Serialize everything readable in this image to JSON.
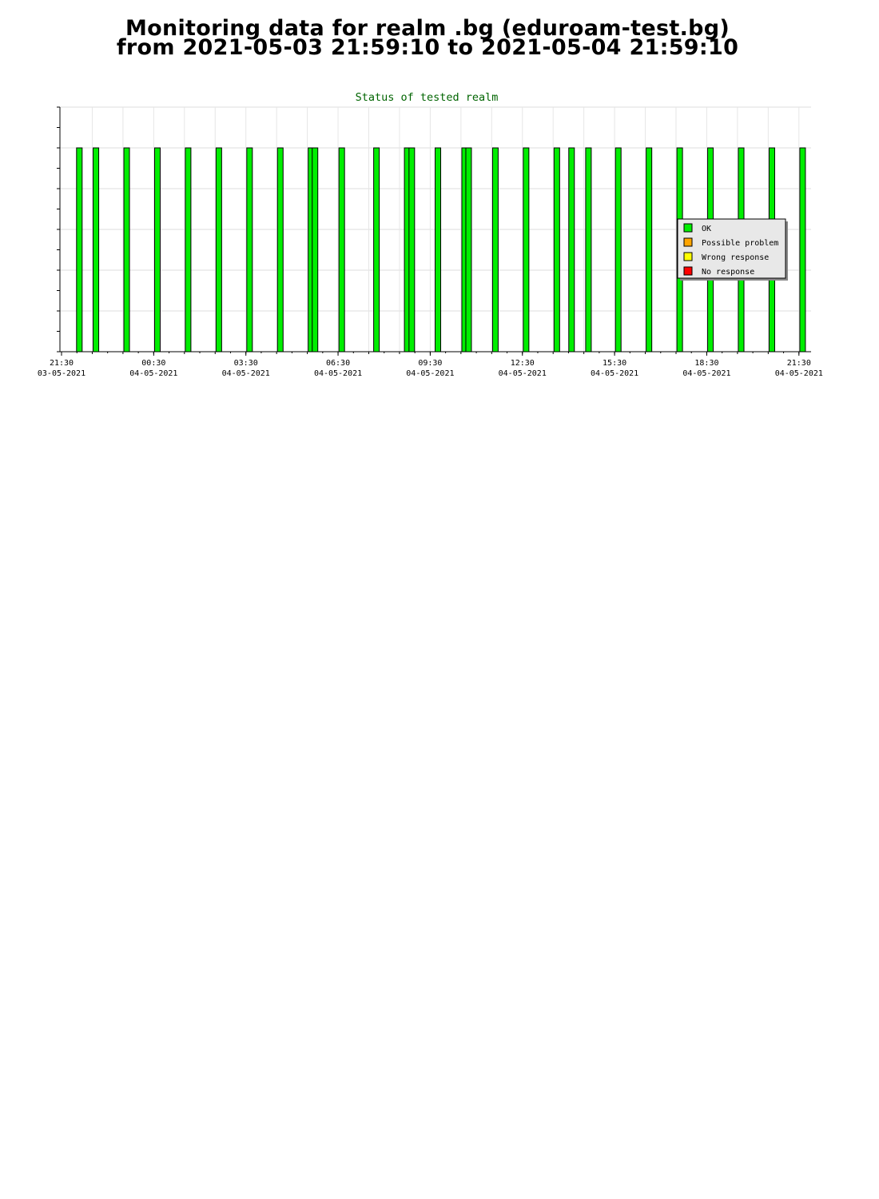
{
  "page": {
    "title_line1": "Monitoring data for realm .bg  (eduroam-test.bg)",
    "title_line2": "from 2021-05-03 21:59:10 to 2021-05-04 21:59:10"
  },
  "chart_data": {
    "type": "bar",
    "title": "Status of tested realm",
    "title_color": "#006400",
    "x_axis": {
      "unit": "hours since 21:30 03-05-2021",
      "range_hours": [
        0,
        24.5
      ],
      "ticks": [
        {
          "hours": 0,
          "time": "21:30",
          "date": "03-05-2021"
        },
        {
          "hours": 3,
          "time": "00:30",
          "date": "04-05-2021"
        },
        {
          "hours": 6,
          "time": "03:30",
          "date": "04-05-2021"
        },
        {
          "hours": 9,
          "time": "06:30",
          "date": "04-05-2021"
        },
        {
          "hours": 12,
          "time": "09:30",
          "date": "04-05-2021"
        },
        {
          "hours": 15,
          "time": "12:30",
          "date": "04-05-2021"
        },
        {
          "hours": 18,
          "time": "15:30",
          "date": "04-05-2021"
        },
        {
          "hours": 21,
          "time": "18:30",
          "date": "04-05-2021"
        },
        {
          "hours": 24,
          "time": "21:30",
          "date": "04-05-2021"
        }
      ]
    },
    "y_axis": {
      "range": [
        0,
        6
      ],
      "tick_labels_shown": false
    },
    "grid": true,
    "series": [
      {
        "name": "OK",
        "color": "#00ee00",
        "value": 5,
        "times_hours": [
          0.58,
          1.12,
          2.12,
          3.12,
          4.12,
          5.12,
          6.12,
          7.12,
          8.12,
          8.25,
          9.12,
          10.25,
          11.25,
          11.4,
          12.25,
          13.12,
          13.25,
          14.12,
          15.12,
          16.12,
          16.6,
          17.15,
          18.12,
          19.12,
          20.12,
          21.12,
          22.12,
          23.12,
          24.12
        ]
      },
      {
        "name": "Possible problem",
        "color": "#ffa500",
        "value": 5,
        "times_hours": []
      },
      {
        "name": "Wrong response",
        "color": "#ffff00",
        "value": 5,
        "times_hours": []
      },
      {
        "name": "No response",
        "color": "#ff0000",
        "value": 5,
        "times_hours": []
      }
    ],
    "legend": {
      "placement": "right",
      "entries": [
        "OK",
        "Possible problem",
        "Wrong response",
        "No response"
      ]
    }
  }
}
